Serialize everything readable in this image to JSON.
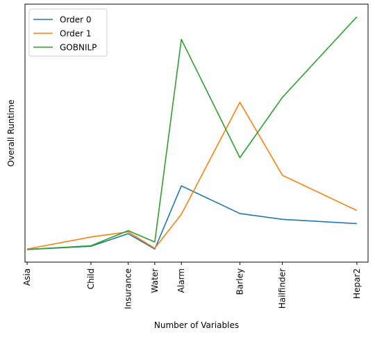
{
  "chart_data": {
    "type": "line",
    "title": "",
    "xlabel": "Number of Variables",
    "ylabel": "Overall Runtime",
    "categories": [
      "Asia",
      "Child",
      "Insurance",
      "Water",
      "Alarm",
      "Barley",
      "Hailfinder",
      "Hepar2"
    ],
    "x": [
      8,
      20,
      27,
      32,
      37,
      48,
      56,
      70
    ],
    "xlim": [
      7.6,
      72.1
    ],
    "ylim": [
      0.45,
      10.7
    ],
    "y_ticks_visible": false,
    "grid": false,
    "legend_position": "top-left",
    "series": [
      {
        "name": "Order 0",
        "color": "#1f77b4",
        "values": [
          0.95,
          1.08,
          1.58,
          0.97,
          3.48,
          2.38,
          2.15,
          1.98
        ]
      },
      {
        "name": "Order 1",
        "color": "#ff7f0e",
        "values": [
          0.97,
          1.45,
          1.65,
          1.0,
          2.35,
          6.8,
          3.9,
          2.5
        ]
      },
      {
        "name": "GOBNILP",
        "color": "#2ca02c",
        "values": [
          0.95,
          1.1,
          1.7,
          1.25,
          9.3,
          4.6,
          7.0,
          10.2
        ]
      }
    ]
  }
}
